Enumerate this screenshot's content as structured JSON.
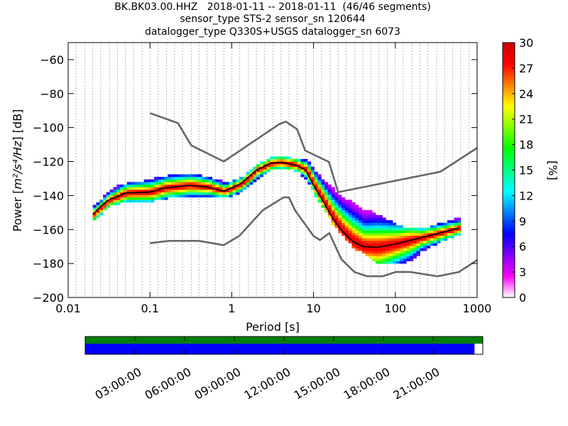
{
  "title_lines": [
    "BK.BK03.00.HHZ   2018-01-11 -- 2018-01-11  (46/46 segments)",
    "sensor_type STS-2 sensor_sn 120644",
    "datalogger_type Q330S+USGS datalogger_sn 6073"
  ],
  "chart_data": [
    {
      "type": "heatmap",
      "title": "BK.BK03.00.HHZ   2018-01-11 -- 2018-01-11  (46/46 segments)",
      "xlabel": "Period [s]",
      "ylabel_parts": [
        "Power [",
        "m²/s⁴/Hz",
        "] [dB]"
      ],
      "xscale": "log",
      "xlim": [
        0.01,
        1000
      ],
      "ylim": [
        -200,
        -50
      ],
      "xticks": [
        0.01,
        0.1,
        1,
        10,
        100,
        1000
      ],
      "xtick_labels": [
        "0.01",
        "0.1",
        "1",
        "10",
        "100",
        "1000"
      ],
      "yticks": [
        -200,
        -180,
        -160,
        -140,
        -120,
        -100,
        -80,
        -60
      ],
      "ytick_labels": [
        "−200",
        "−180",
        "−160",
        "−140",
        "−120",
        "−100",
        "−80",
        "−60"
      ],
      "grid": "dotted vertical lines at period bins",
      "colorbar": {
        "label": "[%]",
        "range": [
          0,
          30
        ],
        "ticks": [
          0,
          3,
          6,
          9,
          12,
          15,
          18,
          21,
          24,
          27,
          30
        ],
        "colormap": [
          "#ffffff",
          "#ff00ff",
          "#8000ff",
          "#0000ff",
          "#0080ff",
          "#00ffff",
          "#00ff80",
          "#00ff00",
          "#80ff00",
          "#ffff00",
          "#ff8000",
          "#ff0000",
          "#cc0000"
        ]
      },
      "series": [
        {
          "kind": "high_noise_model",
          "color": "#666666",
          "x": [
            0.1,
            0.22,
            0.32,
            0.8,
            3.8,
            4.6,
            6.3,
            7.9,
            15.4,
            20,
            354.8,
            1000
          ],
          "y": [
            -91.5,
            -97.4,
            -110.5,
            -120,
            -98,
            -96.5,
            -101,
            -113.5,
            -120.2,
            -138,
            -126,
            -112
          ]
        },
        {
          "kind": "low_noise_model",
          "color": "#666666",
          "x": [
            0.1,
            0.17,
            0.4,
            0.8,
            1.24,
            2.4,
            4.3,
            5,
            6,
            10,
            12,
            15.6,
            21.9,
            31.6,
            45,
            70,
            101,
            154,
            328,
            600,
            1000
          ],
          "y": [
            -168,
            -166.7,
            -166.7,
            -169.2,
            -163.7,
            -148.6,
            -141.1,
            -141.1,
            -149,
            -163.8,
            -166.2,
            -162.1,
            -177.5,
            -185,
            -187.5,
            -187.5,
            -185,
            -185,
            -187.5,
            -185,
            -178
          ]
        },
        {
          "kind": "mode",
          "color": "#000000",
          "x": [
            0.02,
            0.03,
            0.05,
            0.1,
            0.15,
            0.3,
            0.5,
            0.8,
            1.3,
            2,
            3,
            4,
            6,
            8,
            10,
            13,
            17,
            22,
            30,
            40,
            60,
            100,
            200,
            350,
            600
          ],
          "y": [
            -151,
            -143,
            -138.5,
            -138,
            -135.5,
            -134,
            -135,
            -137.5,
            -133,
            -125,
            -121,
            -120.5,
            -122,
            -125,
            -134,
            -143,
            -153,
            -160.5,
            -167,
            -170,
            -170.5,
            -168.5,
            -165,
            -162,
            -159
          ]
        }
      ],
      "distribution_rows": [
        {
          "x": 0.02,
          "lo": -154,
          "hi": -146
        },
        {
          "x": 0.025,
          "lo": -150,
          "hi": -142
        },
        {
          "x": 0.03,
          "lo": -145,
          "hi": -138
        },
        {
          "x": 0.04,
          "lo": -144,
          "hi": -134
        },
        {
          "x": 0.06,
          "lo": -144,
          "hi": -133
        },
        {
          "x": 0.1,
          "lo": -143,
          "hi": -131
        },
        {
          "x": 0.15,
          "lo": -141,
          "hi": -129
        },
        {
          "x": 0.25,
          "lo": -140,
          "hi": -128
        },
        {
          "x": 0.4,
          "lo": -140,
          "hi": -129
        },
        {
          "x": 0.6,
          "lo": -140,
          "hi": -131
        },
        {
          "x": 0.9,
          "lo": -140,
          "hi": -133
        },
        {
          "x": 1.3,
          "lo": -137,
          "hi": -130
        },
        {
          "x": 2,
          "lo": -130,
          "hi": -122
        },
        {
          "x": 3,
          "lo": -124,
          "hi": -118
        },
        {
          "x": 4,
          "lo": -123,
          "hi": -118
        },
        {
          "x": 6,
          "lo": -125,
          "hi": -119
        },
        {
          "x": 8,
          "lo": -130,
          "hi": -120
        },
        {
          "x": 10,
          "lo": -139,
          "hi": -126
        },
        {
          "x": 13,
          "lo": -148,
          "hi": -132
        },
        {
          "x": 17,
          "lo": -157,
          "hi": -136
        },
        {
          "x": 22,
          "lo": -163,
          "hi": -138
        },
        {
          "x": 30,
          "lo": -170,
          "hi": -142
        },
        {
          "x": 40,
          "lo": -174,
          "hi": -148
        },
        {
          "x": 60,
          "lo": -180,
          "hi": -152
        },
        {
          "x": 100,
          "lo": -180,
          "hi": -158
        },
        {
          "x": 150,
          "lo": -178,
          "hi": -160
        },
        {
          "x": 200,
          "lo": -172,
          "hi": -160
        },
        {
          "x": 300,
          "lo": -168,
          "hi": -158
        },
        {
          "x": 450,
          "lo": -164,
          "hi": -155
        },
        {
          "x": 600,
          "lo": -162,
          "hi": -154
        }
      ]
    },
    {
      "type": "coverage",
      "tick_labels": [
        "03:00:00",
        "06:00:00",
        "09:00:00",
        "12:00:00",
        "15:00:00",
        "18:00:00",
        "21:00:00"
      ],
      "tick_hours": [
        3,
        6,
        9,
        12,
        15,
        18,
        21
      ],
      "range_hours": [
        0,
        24
      ],
      "bars": [
        {
          "kind": "processed",
          "color": "#008000",
          "start": 0,
          "end": 24
        },
        {
          "kind": "used",
          "color": "#0000ff",
          "start": 0,
          "end": 23.5
        }
      ]
    }
  ]
}
